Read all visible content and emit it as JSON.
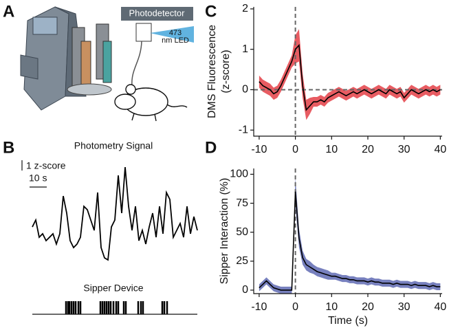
{
  "panel_labels": [
    "A",
    "B",
    "C",
    "D"
  ],
  "illustration": {
    "detector": "Photodetector",
    "led": [
      "473",
      "nm LED"
    ]
  },
  "chart_data": [
    {
      "type": "trace",
      "title": "Photometry Signal",
      "color": "#000000",
      "scalebar": {
        "y": 1,
        "y_label": "1 z-score",
        "x": 10,
        "x_label": "10 s"
      },
      "x": [
        0,
        2,
        4,
        6,
        8,
        10,
        12,
        14,
        16,
        18,
        20,
        22,
        24,
        26,
        28,
        30,
        32,
        34,
        36,
        38,
        40,
        42,
        44,
        46,
        48,
        50,
        52,
        54,
        56,
        58,
        60,
        62,
        64,
        66,
        68,
        70,
        72,
        74,
        76,
        78,
        80,
        82,
        84,
        86,
        88,
        90,
        92,
        94,
        96
      ],
      "values": [
        3.33,
        4,
        2.33,
        2.67,
        2,
        2.33,
        2.67,
        1.67,
        2.67,
        6.33,
        4.67,
        2,
        1.33,
        1.67,
        2.33,
        5.33,
        5,
        4,
        3,
        6.67,
        1.33,
        0.33,
        0.13,
        3.33,
        4,
        8.33,
        4.67,
        9.13,
        5.33,
        3,
        5.33,
        2,
        3,
        1.67,
        3.33,
        4.67,
        2.33,
        5.33,
        2.67,
        6.67,
        6,
        2.33,
        3,
        3.67,
        2.33,
        5.33,
        2.67,
        4.33,
        3
      ]
    },
    {
      "type": "events",
      "title": "Sipper Device",
      "color": "#000000",
      "x": [
        19.6,
        20.8,
        21.6,
        22.8,
        24,
        25.2,
        26.8,
        28,
        39.6,
        40.8,
        42,
        43.2,
        44.4,
        45.6,
        47.2,
        48.8,
        50,
        53.2,
        54.4,
        61.6,
        63.2,
        64.4,
        75.6,
        76.8,
        78.4
      ]
    },
    {
      "type": "line",
      "ylabel": [
        "DMS Fluorescence",
        "(z-score)"
      ],
      "color": "#000000",
      "band_color": "#e0262e",
      "xlim": [
        -11.5,
        40.5
      ],
      "ylim": [
        -1.15,
        2.05
      ],
      "xticks": [
        -10,
        0,
        10,
        20,
        30,
        40
      ],
      "yticks": [
        -1,
        0,
        1,
        2
      ],
      "vlines": [
        0
      ],
      "hlines": [
        0
      ],
      "x": [
        -10,
        -9,
        -8,
        -7,
        -6,
        -5,
        -4,
        -3,
        -2,
        -1,
        0,
        1,
        2,
        3,
        4,
        5,
        6,
        7,
        8,
        9,
        10,
        11,
        12,
        13,
        14,
        15,
        16,
        17,
        18,
        19,
        20,
        21,
        22,
        23,
        24,
        25,
        26,
        27,
        28,
        29,
        30,
        31,
        32,
        33,
        34,
        35,
        36,
        37,
        38,
        39,
        40
      ],
      "values": [
        0.2,
        0.1,
        0.05,
        0,
        -0.1,
        -0.05,
        0.1,
        0.3,
        0.5,
        0.7,
        1.0,
        1.1,
        0.1,
        -0.5,
        -0.4,
        -0.3,
        -0.3,
        -0.25,
        -0.3,
        -0.2,
        -0.15,
        -0.1,
        -0.05,
        -0.1,
        -0.15,
        -0.1,
        -0.05,
        -0.1,
        -0.05,
        0,
        -0.05,
        -0.1,
        -0.05,
        0,
        -0.05,
        -0.1,
        0,
        -0.05,
        -0.1,
        -0.05,
        -0.2,
        -0.1,
        0,
        -0.05,
        -0.1,
        -0.05,
        0,
        -0.05,
        0,
        -0.05,
        0
      ],
      "error": [
        0.15,
        0.15,
        0.15,
        0.15,
        0.15,
        0.15,
        0.15,
        0.15,
        0.15,
        0.15,
        0.35,
        0.4,
        0.3,
        0.25,
        0.2,
        0.12,
        0.12,
        0.12,
        0.12,
        0.12,
        0.12,
        0.12,
        0.12,
        0.12,
        0.12,
        0.12,
        0.12,
        0.12,
        0.12,
        0.12,
        0.12,
        0.12,
        0.12,
        0.12,
        0.12,
        0.12,
        0.12,
        0.12,
        0.12,
        0.12,
        0.12,
        0.12,
        0.12,
        0.12,
        0.12,
        0.12,
        0.12,
        0.12,
        0.12,
        0.12,
        0.12
      ]
    },
    {
      "type": "line",
      "xlabel": "Time (s)",
      "ylabel": [
        "Sipper Interaction (%)"
      ],
      "color": "#000000",
      "band_color": "#4a55a8",
      "xlim": [
        -11.5,
        40.5
      ],
      "ylim": [
        -3,
        105
      ],
      "xticks": [
        -10,
        0,
        10,
        20,
        30,
        40
      ],
      "yticks": [
        0,
        25,
        50,
        75,
        100
      ],
      "vlines": [
        0
      ],
      "hlines": [],
      "x": [
        -10,
        -9,
        -8,
        -7,
        -6,
        -5,
        -4,
        -3,
        -2,
        -1,
        0,
        1,
        2,
        3,
        4,
        5,
        6,
        7,
        8,
        9,
        10,
        11,
        12,
        13,
        14,
        15,
        16,
        17,
        18,
        19,
        20,
        21,
        22,
        23,
        24,
        25,
        26,
        27,
        28,
        29,
        30,
        31,
        32,
        33,
        34,
        35,
        36,
        37,
        38,
        39,
        40
      ],
      "values": [
        2,
        5,
        8,
        5,
        2,
        1,
        0,
        0,
        0,
        0,
        85,
        45,
        28,
        22,
        20,
        18,
        16,
        15,
        14,
        13,
        12,
        12,
        11,
        10,
        10,
        9,
        9,
        8,
        8,
        8,
        7,
        8,
        7,
        7,
        6,
        6,
        6,
        5,
        6,
        5,
        5,
        5,
        4,
        5,
        4,
        4,
        4,
        3,
        4,
        3,
        3
      ],
      "error": [
        3,
        3,
        3,
        3,
        3,
        3,
        3,
        3,
        3,
        3,
        12,
        8,
        6,
        5,
        5,
        4,
        4,
        4,
        4,
        4,
        3,
        3,
        3,
        3,
        3,
        3,
        3,
        3,
        3,
        3,
        3,
        3,
        3,
        3,
        3,
        3,
        3,
        3,
        3,
        3,
        3,
        3,
        3,
        3,
        3,
        3,
        3,
        3,
        3,
        3,
        3
      ]
    }
  ]
}
